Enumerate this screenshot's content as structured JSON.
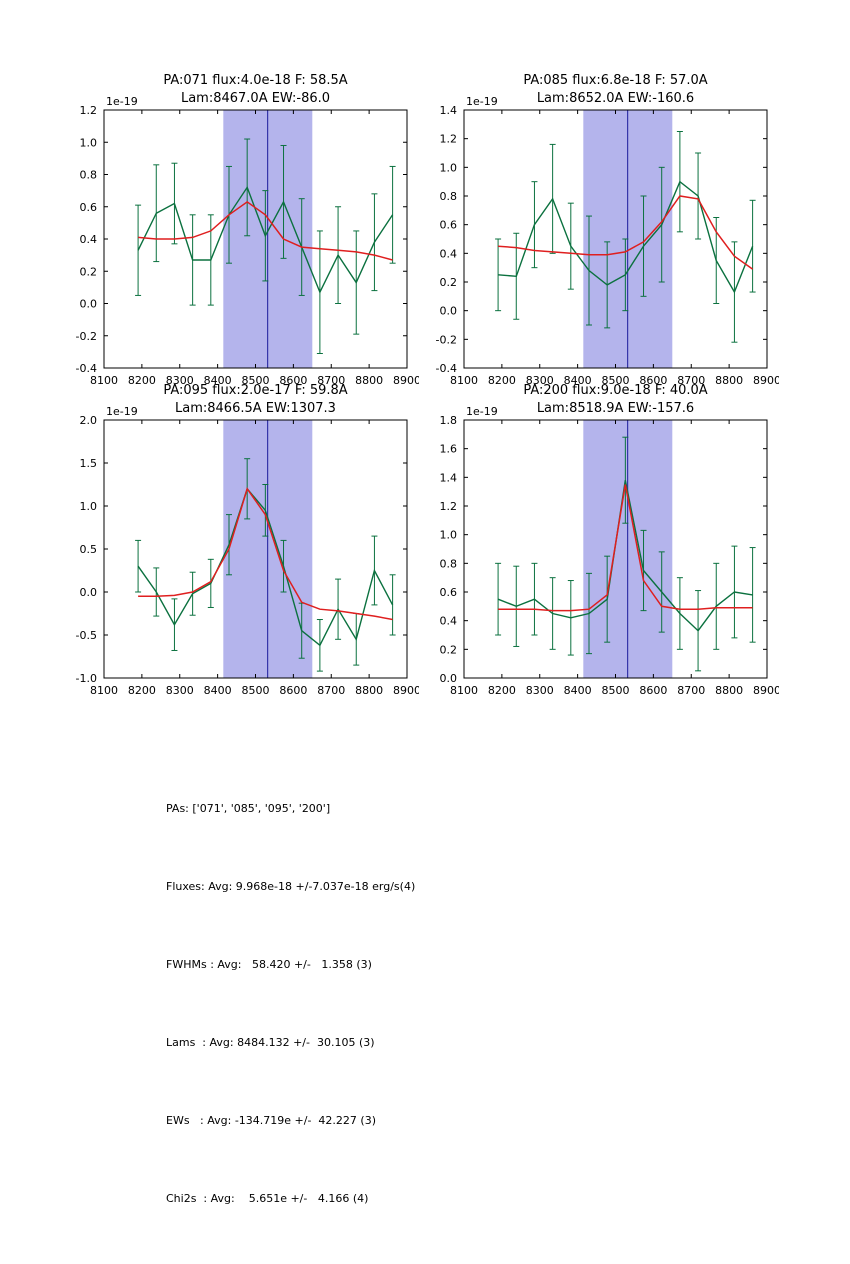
{
  "colors": {
    "data_line": "#0b713f",
    "fit_line": "#df1f1f",
    "band_fill": "#b4b4ec",
    "center_line": "#3434a8",
    "axis": "#000000",
    "background": "#ffffff"
  },
  "chart_data": [
    {
      "type": "line",
      "title_line1": "PA:071 flux:4.0e-18 F: 58.5A",
      "title_line2": "Lam:8467.0A EW:-86.0",
      "offset_label": "1e-19",
      "xlim": [
        8100,
        8900
      ],
      "ylim": [
        -0.4,
        1.2
      ],
      "xtick_step": 100,
      "ytick_step": 0.2,
      "band": [
        8415,
        8650
      ],
      "center_wavelength": 8532,
      "legend": "off",
      "grid": "off",
      "x": [
        8190,
        8238,
        8286,
        8334,
        8382,
        8430,
        8478,
        8526,
        8574,
        8622,
        8670,
        8718,
        8766,
        8814,
        8862
      ],
      "series": [
        {
          "name": "spectrum",
          "values": [
            0.33,
            0.56,
            0.62,
            0.27,
            0.27,
            0.55,
            0.72,
            0.42,
            0.63,
            0.35,
            0.07,
            0.3,
            0.13,
            0.38,
            0.55
          ],
          "errors": [
            0.28,
            0.3,
            0.25,
            0.28,
            0.28,
            0.3,
            0.3,
            0.28,
            0.35,
            0.3,
            0.38,
            0.3,
            0.32,
            0.3,
            0.3
          ]
        },
        {
          "name": "fit",
          "values": [
            0.41,
            0.4,
            0.4,
            0.41,
            0.45,
            0.55,
            0.63,
            0.55,
            0.4,
            0.35,
            0.34,
            0.33,
            0.32,
            0.3,
            0.27
          ]
        }
      ]
    },
    {
      "type": "line",
      "title_line1": "PA:085 flux:6.8e-18 F: 57.0A",
      "title_line2": "Lam:8652.0A EW:-160.6",
      "offset_label": "1e-19",
      "xlim": [
        8100,
        8900
      ],
      "ylim": [
        -0.4,
        1.4
      ],
      "xtick_step": 100,
      "ytick_step": 0.2,
      "band": [
        8415,
        8650
      ],
      "center_wavelength": 8532,
      "legend": "off",
      "grid": "off",
      "x": [
        8190,
        8238,
        8286,
        8334,
        8382,
        8430,
        8478,
        8526,
        8574,
        8622,
        8670,
        8718,
        8766,
        8814,
        8862
      ],
      "series": [
        {
          "name": "spectrum",
          "values": [
            0.25,
            0.24,
            0.6,
            0.78,
            0.45,
            0.28,
            0.18,
            0.25,
            0.45,
            0.6,
            0.9,
            0.8,
            0.35,
            0.13,
            0.45
          ],
          "errors": [
            0.25,
            0.3,
            0.3,
            0.38,
            0.3,
            0.38,
            0.3,
            0.25,
            0.35,
            0.4,
            0.35,
            0.3,
            0.3,
            0.35,
            0.32
          ]
        },
        {
          "name": "fit",
          "values": [
            0.45,
            0.44,
            0.42,
            0.41,
            0.4,
            0.39,
            0.39,
            0.41,
            0.48,
            0.62,
            0.8,
            0.78,
            0.55,
            0.38,
            0.29
          ]
        }
      ]
    },
    {
      "type": "line",
      "title_line1": "PA:095 flux:2.0e-17 F: 59.8A",
      "title_line2": "Lam:8466.5A EW:1307.3",
      "offset_label": "1e-19",
      "xlim": [
        8100,
        8900
      ],
      "ylim": [
        -1.0,
        2.0
      ],
      "xtick_step": 100,
      "ytick_step": 0.5,
      "band": [
        8415,
        8650
      ],
      "center_wavelength": 8532,
      "legend": "off",
      "grid": "off",
      "x": [
        8190,
        8238,
        8286,
        8334,
        8382,
        8430,
        8478,
        8526,
        8574,
        8622,
        8670,
        8718,
        8766,
        8814,
        8862
      ],
      "series": [
        {
          "name": "spectrum",
          "values": [
            0.3,
            0.0,
            -0.38,
            -0.02,
            0.1,
            0.55,
            1.2,
            0.95,
            0.3,
            -0.45,
            -0.62,
            -0.2,
            -0.55,
            0.25,
            -0.15
          ],
          "errors": [
            0.3,
            0.28,
            0.3,
            0.25,
            0.28,
            0.35,
            0.35,
            0.3,
            0.3,
            0.32,
            0.3,
            0.35,
            0.3,
            0.4,
            0.35
          ]
        },
        {
          "name": "fit",
          "values": [
            -0.05,
            -0.05,
            -0.04,
            0.0,
            0.12,
            0.5,
            1.2,
            0.9,
            0.25,
            -0.12,
            -0.2,
            -0.22,
            -0.25,
            -0.28,
            -0.32
          ]
        }
      ]
    },
    {
      "type": "line",
      "title_line1": "PA:200 flux:9.0e-18 F: 40.0A",
      "title_line2": "Lam:8518.9A EW:-157.6",
      "offset_label": "1e-19",
      "xlim": [
        8100,
        8900
      ],
      "ylim": [
        0.0,
        1.8
      ],
      "xtick_step": 100,
      "ytick_step": 0.2,
      "band": [
        8415,
        8650
      ],
      "center_wavelength": 8532,
      "legend": "off",
      "grid": "off",
      "x": [
        8190,
        8238,
        8286,
        8334,
        8382,
        8430,
        8478,
        8526,
        8574,
        8622,
        8670,
        8718,
        8766,
        8814,
        8862
      ],
      "series": [
        {
          "name": "spectrum",
          "values": [
            0.55,
            0.5,
            0.55,
            0.45,
            0.42,
            0.45,
            0.55,
            1.38,
            0.75,
            0.6,
            0.45,
            0.33,
            0.5,
            0.6,
            0.58
          ],
          "errors": [
            0.25,
            0.28,
            0.25,
            0.25,
            0.26,
            0.28,
            0.3,
            0.3,
            0.28,
            0.28,
            0.25,
            0.28,
            0.3,
            0.32,
            0.33
          ]
        },
        {
          "name": "fit",
          "values": [
            0.48,
            0.48,
            0.48,
            0.47,
            0.47,
            0.48,
            0.58,
            1.35,
            0.68,
            0.5,
            0.48,
            0.48,
            0.49,
            0.49,
            0.49
          ]
        }
      ]
    }
  ],
  "summary": {
    "lines": [
      "PAs: ['071', '085', '095', '200']",
      "Fluxes: Avg: 9.968e-18 +/-7.037e-18 erg/s(4)",
      "FWHMs : Avg:   58.420 +/-   1.358 (3)",
      "Lams  : Avg: 8484.132 +/-  30.105 (3)",
      "EWs   : Avg: -134.719e +/-  42.227 (3)",
      "Chi2s  : Avg:    5.651e +/-   4.166 (4)"
    ]
  }
}
